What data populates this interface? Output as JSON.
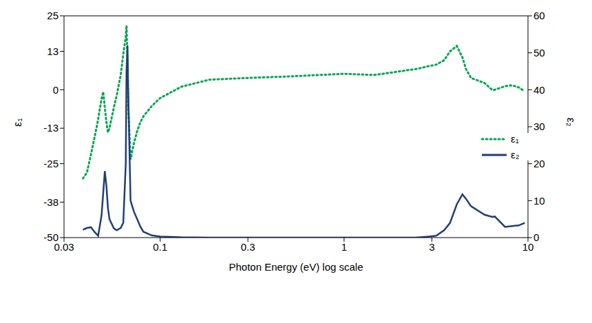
{
  "chart_data": {
    "type": "line",
    "xlabel": "Photon Energy (eV) log scale",
    "ylabel": "ε₁",
    "y2label": "ε₂",
    "log": "x",
    "grid": false,
    "legend": "right",
    "xlim": [
      0.03,
      10
    ],
    "xticks": [
      0.03,
      0.1,
      0.3,
      1,
      3,
      10
    ],
    "ylim": [
      -50,
      25
    ],
    "yticks": [
      -50,
      -38,
      -25,
      -13,
      0,
      13,
      25
    ],
    "y2lim": [
      0,
      60
    ],
    "y2ticks": [
      0,
      10,
      20,
      30,
      40,
      50,
      60
    ],
    "x": [
      0.038,
      0.04,
      0.042,
      0.044,
      0.046,
      0.048,
      0.049,
      0.05,
      0.051,
      0.052,
      0.053,
      0.056,
      0.058,
      0.061,
      0.063,
      0.065,
      0.0656,
      0.0664,
      0.067,
      0.069,
      0.072,
      0.075,
      0.078,
      0.081,
      0.09,
      0.1,
      0.13,
      0.185,
      0.3,
      0.5,
      1,
      1.46,
      2.45,
      2.9,
      3.17,
      3.5,
      3.77,
      4.1,
      4.4,
      4.6,
      4.9,
      5.8,
      6.4,
      6.6,
      7.5,
      8.2,
      8.9,
      9.6
    ],
    "series": [
      {
        "name": "ε₁",
        "color": "#00a650",
        "line_style": "dotted",
        "values": [
          -30,
          -28,
          -22,
          -16,
          -10,
          -3,
          -0.7,
          -6,
          -11,
          -14.4,
          -13,
          -6,
          -2,
          5,
          12,
          18,
          21.7,
          10,
          -5,
          -23.6,
          -18,
          -14,
          -11,
          -9,
          -5.5,
          -2.8,
          1,
          3.4,
          4,
          4.5,
          5.4,
          5,
          7,
          8,
          8.5,
          10,
          13,
          14.8,
          11,
          7,
          4,
          2.3,
          -0.1,
          0,
          1.2,
          1.5,
          0.8,
          -0.5
        ]
      },
      {
        "name": "ε₂",
        "color": "#1f3f73",
        "line_style": "solid",
        "axis": "y2",
        "values": [
          2.1,
          2.6,
          2.8,
          1.5,
          0.5,
          6,
          12,
          18,
          14,
          8,
          5,
          2.5,
          2,
          2.6,
          4,
          20,
          45,
          52,
          40,
          10,
          7,
          5,
          3,
          1.6,
          0.6,
          0.3,
          0.1,
          0,
          0,
          0,
          0,
          0,
          0,
          0.3,
          0.5,
          2,
          4,
          9,
          11.7,
          10.5,
          8.5,
          6.2,
          5.6,
          5.7,
          2.9,
          3.1,
          3.3,
          4
        ]
      }
    ]
  }
}
